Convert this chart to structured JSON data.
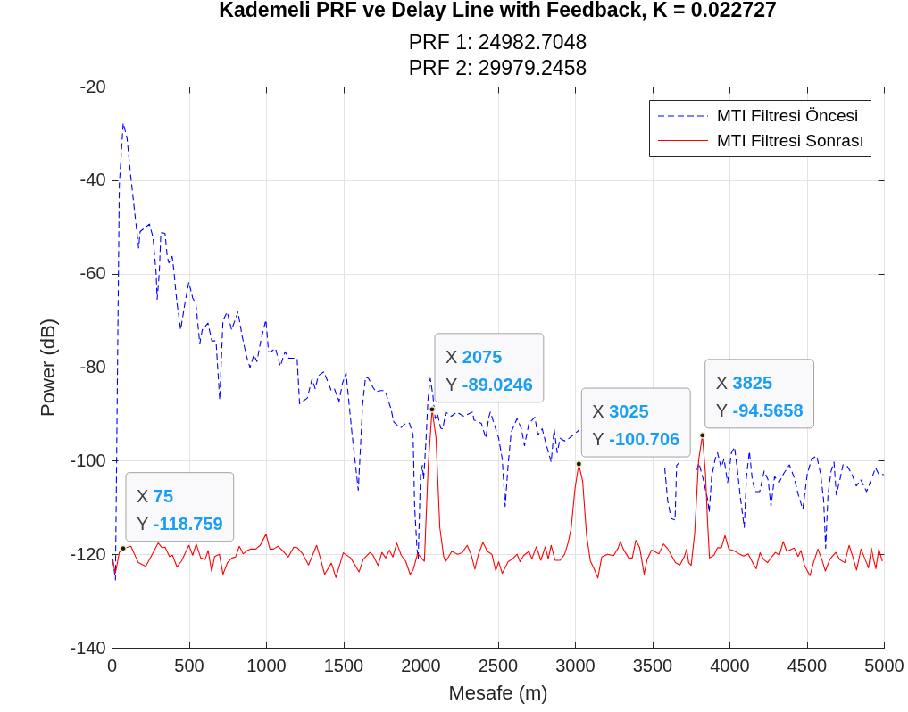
{
  "chart_data": {
    "type": "line",
    "title": "Kademeli PRF ve Delay Line with Feedback, K = 0.022727",
    "subtitle": "PRF 1: 24982.7048\nPRF 2: 29979.2458",
    "xlabel": "Mesafe (m)",
    "ylabel": "Power (dB)",
    "xlim": [
      0,
      5000
    ],
    "xticks": [
      0,
      500,
      1000,
      1500,
      2000,
      2500,
      3000,
      3500,
      4000,
      4500,
      5000
    ],
    "ylim": [
      -140,
      -20
    ],
    "yticks": [
      -140,
      -120,
      -100,
      -80,
      -60,
      -40,
      -20
    ],
    "grid": true,
    "legend": "top right",
    "series": [
      {
        "name": "MTI Filtresi Öncesi",
        "color": "#0000ff",
        "line_style": "dashed",
        "x": [
          0,
          25,
          50,
          75,
          100,
          125,
          150,
          175,
          185,
          215,
          245,
          268,
          288,
          295,
          309,
          319,
          346,
          360,
          371,
          392,
          402,
          422,
          447,
          474,
          500,
          525,
          546,
          571,
          587,
          624,
          649,
          676,
          700,
          721,
          748,
          777,
          818,
          845,
          871,
          896,
          921,
          941,
          968,
          999,
          1016,
          1030,
          1061,
          1092,
          1123,
          1147,
          1201,
          1217,
          1267,
          1298,
          1318,
          1339,
          1374,
          1401,
          1421,
          1442,
          1473,
          1494,
          1518,
          1555,
          1597,
          1610,
          1625,
          1644,
          1663,
          1692,
          1712,
          1740,
          1769,
          1779,
          1808,
          1827,
          1856,
          1875,
          1904,
          1929,
          1952,
          1962,
          1977,
          1985,
          2000,
          2012,
          2020,
          2035,
          2048,
          2063,
          2080,
          2095,
          2110,
          2130,
          2144,
          2163,
          2200,
          2235,
          2280,
          2337,
          2346,
          2394,
          2423,
          2442,
          2452,
          2475,
          2506,
          2529,
          2548,
          2567,
          2587,
          2625,
          2654,
          2673,
          2702,
          2740,
          2760,
          2788,
          2808,
          2846,
          2865,
          2885,
          2904,
          2933,
          2962,
          2990,
          3025,
          3300,
          3581,
          3600,
          3623,
          3648,
          3658,
          3673,
          3720,
          3790,
          3802,
          3831,
          3860,
          3869,
          3885,
          3908,
          3923,
          3946,
          3965,
          3988,
          4013,
          4033,
          4052,
          4071,
          4096,
          4110,
          4129,
          4148,
          4167,
          4196,
          4225,
          4250,
          4269,
          4292,
          4321,
          4350,
          4388,
          4417,
          4446,
          4475,
          4504,
          4533,
          4565,
          4590,
          4610,
          4623,
          4638,
          4658,
          4677,
          4692,
          4715,
          4735,
          4763,
          4792,
          4821,
          4850,
          4888,
          4917,
          4946,
          4965,
          5000
        ],
        "values": [
          -119,
          -125.5,
          -41,
          -27.8,
          -31,
          -39.5,
          -47,
          -54.5,
          -51,
          -50.2,
          -49.4,
          -52.2,
          -59.7,
          -65.5,
          -59.7,
          -51.2,
          -51.4,
          -56.3,
          -57.7,
          -56.3,
          -59,
          -65.9,
          -72,
          -66.5,
          -61.8,
          -65.2,
          -66.5,
          -75,
          -72,
          -70.6,
          -74.4,
          -74.4,
          -87,
          -70,
          -68.2,
          -72,
          -68.2,
          -73.3,
          -77.4,
          -80.1,
          -77.4,
          -78.8,
          -74,
          -69.9,
          -76.7,
          -76.7,
          -76,
          -79.8,
          -76.7,
          -78.1,
          -78.1,
          -87.8,
          -86.6,
          -82.5,
          -84.6,
          -81.8,
          -81,
          -83.2,
          -84.9,
          -84.6,
          -87.3,
          -83.5,
          -81.2,
          -93.7,
          -106.3,
          -98,
          -88,
          -82.1,
          -82.4,
          -84.3,
          -85.3,
          -85,
          -85,
          -85.9,
          -88.8,
          -91.7,
          -92.6,
          -92.9,
          -92,
          -92,
          -94.5,
          -109.8,
          -118.7,
          -121,
          -103,
          -101,
          -104,
          -96,
          -87,
          -82.4,
          -86,
          -91,
          -90,
          -93,
          -93.2,
          -89.6,
          -90.5,
          -89.6,
          -90.5,
          -89.6,
          -91.3,
          -92,
          -95.2,
          -90.7,
          -89.6,
          -92,
          -95.2,
          -99.6,
          -109.8,
          -100.9,
          -93.9,
          -91,
          -93.2,
          -96.8,
          -92,
          -90.7,
          -94.5,
          -93.2,
          -95.8,
          -100.3,
          -93.2,
          -98.3,
          -95.2,
          -95.8,
          -95.2,
          -94.5,
          -93.5,
          null,
          -101.5,
          -108.5,
          -112.4,
          -112.7,
          -101,
          -100.5,
          null,
          -102,
          -100.5,
          -104.1,
          -108.5,
          -111.1,
          -103.4,
          -99.6,
          -98.3,
          -101.5,
          -99.6,
          -104.7,
          -98.3,
          -97.1,
          -102.2,
          -107.9,
          -114.3,
          -103.4,
          -98,
          -104.1,
          -106.6,
          -106.6,
          -102.2,
          -104.1,
          -109.8,
          -103.4,
          -104.7,
          -102.8,
          -100.9,
          -103.4,
          -107.3,
          -110.4,
          -102.8,
          -99.6,
          -99,
          -102.8,
          -108.5,
          -118.7,
          -107.3,
          -102.2,
          -100.3,
          -107.3,
          -104.1,
          -100.9,
          -101.2,
          -102.8,
          -105.4,
          -104.1,
          -106.6,
          -104.1,
          -101.5,
          -102.8,
          -103
        ]
      },
      {
        "name": "MTI Filtresi Sonrası",
        "color": "#ff0000",
        "line_style": "solid",
        "x": [
          0,
          25,
          50,
          75,
          125,
          173,
          221,
          260,
          302,
          327,
          346,
          375,
          394,
          423,
          452,
          500,
          525,
          548,
          577,
          606,
          625,
          648,
          667,
          698,
          721,
          750,
          779,
          802,
          827,
          852,
          879,
          898,
          933,
          962,
          1000,
          1025,
          1048,
          1077,
          1106,
          1144,
          1179,
          1202,
          1237,
          1275,
          1327,
          1346,
          1379,
          1423,
          1452,
          1500,
          1548,
          1602,
          1629,
          1673,
          1692,
          1725,
          1750,
          1775,
          1798,
          1821,
          1846,
          1875,
          1904,
          1933,
          1952,
          1981,
          2006,
          2025,
          2050,
          2075,
          2100,
          2125,
          2150,
          2163,
          2202,
          2240,
          2269,
          2302,
          2327,
          2352,
          2375,
          2404,
          2433,
          2462,
          2487,
          2506,
          2529,
          2567,
          2596,
          2625,
          2644,
          2667,
          2702,
          2721,
          2750,
          2779,
          2808,
          2827,
          2846,
          2871,
          2904,
          2933,
          2956,
          2975,
          3000,
          3025,
          3050,
          3075,
          3100,
          3125,
          3148,
          3173,
          3211,
          3250,
          3279,
          3294,
          3313,
          3348,
          3371,
          3394,
          3419,
          3448,
          3467,
          3496,
          3544,
          3573,
          3602,
          3650,
          3679,
          3708,
          3723,
          3736,
          3752,
          3775,
          3800,
          3825,
          3845,
          3858,
          3871,
          3900,
          3923,
          3948,
          3971,
          3996,
          4025,
          4063,
          4092,
          4121,
          4150,
          4173,
          4198,
          4221,
          4246,
          4275,
          4298,
          4323,
          4348,
          4371,
          4419,
          4444,
          4463,
          4486,
          4521,
          4544,
          4573,
          4598,
          4621,
          4650,
          4688,
          4713,
          4746,
          4775,
          4798,
          4823,
          4852,
          4875,
          4900,
          4919,
          4933,
          4948,
          4967,
          4990
        ],
        "values": [
          -120.5,
          -124,
          -119.6,
          -118.759,
          -118.3,
          -121.8,
          -122.6,
          -120.2,
          -117.6,
          -118.6,
          -118.5,
          -120.5,
          -120.2,
          -122.7,
          -121.5,
          -118.1,
          -120.2,
          -117.8,
          -120.8,
          -121.1,
          -119.2,
          -123.7,
          -120.5,
          -120,
          -124.3,
          -121.8,
          -120.8,
          -120.6,
          -118.3,
          -119.9,
          -119.2,
          -118.9,
          -118.9,
          -118.1,
          -115.7,
          -118.9,
          -118.9,
          -118.3,
          -119.2,
          -120.6,
          -118.5,
          -118.6,
          -119.9,
          -122.3,
          -118.1,
          -120.2,
          -124.3,
          -121.9,
          -125,
          -119.7,
          -120.8,
          -123.8,
          -121.1,
          -119.6,
          -120.2,
          -122.4,
          -119.6,
          -120.8,
          -119.1,
          -120.6,
          -117.6,
          -120.2,
          -121.5,
          -124.3,
          -123.4,
          -119.9,
          -120.8,
          -121.5,
          -101,
          -89.0246,
          -95,
          -114.3,
          -120.5,
          -121.6,
          -119.4,
          -120,
          -119.7,
          -118.1,
          -120,
          -123.2,
          -120,
          -117.5,
          -119.4,
          -120,
          -123.5,
          -121.6,
          -124.1,
          -121.6,
          -121,
          -120,
          -121.6,
          -120.3,
          -119.4,
          -121,
          -118.4,
          -121.3,
          -118.4,
          -121,
          -118.1,
          -121.3,
          -121.3,
          -120,
          -117.5,
          -114.5,
          -106,
          -100.706,
          -104.5,
          -116,
          -121.5,
          -123.2,
          -125.1,
          -120.6,
          -120,
          -120.3,
          -118.7,
          -117.3,
          -118.9,
          -120.8,
          -120.8,
          -117,
          -118.6,
          -124.3,
          -121.1,
          -119.1,
          -119.9,
          -117.8,
          -118.9,
          -121.8,
          -122.3,
          -120.5,
          -118.9,
          -121.8,
          -122.4,
          -115.5,
          -100,
          -94.5658,
          -103,
          -113,
          -120.8,
          -120.2,
          -118.6,
          -118.6,
          -116,
          -118.9,
          -119.2,
          -119.9,
          -120.4,
          -119.9,
          -121.8,
          -123.1,
          -119.7,
          -121.1,
          -121.8,
          -120.5,
          -119.6,
          -120.2,
          -117.3,
          -119.4,
          -118.7,
          -120.5,
          -119.2,
          -122.4,
          -124.6,
          -121.8,
          -118.9,
          -121.1,
          -123.6,
          -121.1,
          -119.6,
          -121.1,
          -121.8,
          -118.1,
          -120.5,
          -123.4,
          -118.9,
          -120.8,
          -122.9,
          -118.7,
          -121.1,
          -123.1,
          -118.9,
          -121.5
        ]
      }
    ],
    "annotations": [
      {
        "text": "X 75\nY -118.759",
        "x": 75,
        "y": -118.759
      },
      {
        "text": "X 2075\nY -89.0246",
        "x": 2075,
        "y": -89.0246
      },
      {
        "text": "X 3025\nY -100.706",
        "x": 3025,
        "y": -100.706
      },
      {
        "text": "X 3825\nY -94.5658",
        "x": 3825,
        "y": -94.5658
      }
    ]
  }
}
